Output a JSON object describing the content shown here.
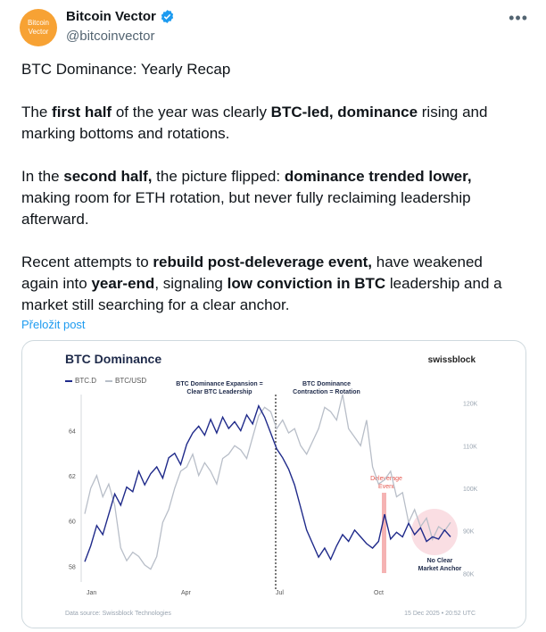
{
  "author": {
    "avatar_text_line1": "Bitcoin",
    "avatar_text_line2": "Vector",
    "display_name": "Bitcoin Vector",
    "handle": "@bitcoinvector"
  },
  "more_icon": "more-horizontal-icon",
  "post": {
    "line_title": "BTC Dominance: Yearly Recap",
    "p2": [
      "The ",
      "first half",
      " of the year was clearly ",
      "BTC-led, dominance",
      " rising and marking bottoms and rotations."
    ],
    "p3": [
      "In the ",
      "second half,",
      " the picture flipped: ",
      "dominance trended lower,",
      " making room for ETH rotation, but never fully reclaiming leadership afterward."
    ],
    "p4": [
      "Recent attempts to ",
      "rebuild post-deleverage event,",
      " have weakened again into ",
      "year-end",
      ", signaling ",
      "low conviction in BTC",
      " leadership and a market still searching for a clear anchor."
    ],
    "translate": "Přeložit post"
  },
  "colors": {
    "accent": "#1d9bf0",
    "btcd": "#1f2a8a",
    "btcusd": "#b8bec8",
    "delev": "#f2a0a0",
    "noclear": "#f6c3cc"
  },
  "chart_data": {
    "type": "line",
    "title": "BTC Dominance",
    "brand": "swissblock",
    "legend": [
      "BTC.D",
      "BTC/USD"
    ],
    "x_ticks": [
      "Jan",
      "Apr",
      "Jul",
      "Oct"
    ],
    "left_ticks": [
      "64",
      "62",
      "60",
      "58"
    ],
    "right_ticks": [
      "120K",
      "110K",
      "100K",
      "90K",
      "80K"
    ],
    "ylim_left": [
      57.3,
      65.6
    ],
    "ylim_right": [
      78000,
      122000
    ],
    "annotations": {
      "expansion_l1": "BTC Dominance Expansion =",
      "expansion_l2": "Clear BTC Leadership",
      "contraction_l1": "BTC Dominance",
      "contraction_l2": "Contraction = Rotation",
      "delev_l1": "Deleverage",
      "delev_l2": "Event",
      "noclear_l1": "No Clear",
      "noclear_l2": "Market Anchor"
    },
    "footer_source": "Data source: Swissblock Technologies",
    "footer_date": "15 Dec 2025 • 20:52 UTC",
    "series": [
      {
        "name": "BTC.D",
        "values": [
          58.2,
          58.9,
          59.8,
          59.4,
          60.3,
          61.2,
          60.7,
          61.5,
          61.3,
          62.2,
          61.6,
          62.1,
          62.4,
          61.9,
          62.8,
          63.0,
          62.5,
          63.4,
          63.9,
          64.2,
          63.8,
          64.5,
          63.9,
          64.6,
          64.1,
          64.4,
          64.0,
          64.7,
          64.3,
          65.1,
          64.6,
          63.9,
          63.2,
          62.8,
          62.3,
          61.6,
          60.6,
          59.6,
          59.0,
          58.4,
          58.8,
          58.3,
          58.9,
          59.4,
          59.1,
          59.6,
          59.3,
          59.0,
          58.8,
          59.1,
          60.3,
          59.2,
          59.5,
          59.3,
          59.9,
          59.4,
          59.7,
          59.1,
          59.3,
          59.2,
          59.6,
          59.3
        ]
      },
      {
        "name": "BTC/USD",
        "values": [
          94000,
          100000,
          103000,
          98000,
          101000,
          96000,
          86000,
          83000,
          85000,
          84000,
          82000,
          81000,
          84000,
          92000,
          95000,
          100000,
          104000,
          105000,
          108000,
          103000,
          106000,
          104000,
          101000,
          107000,
          108000,
          110000,
          109000,
          107000,
          112000,
          117000,
          119000,
          118000,
          114000,
          116000,
          113000,
          114000,
          110000,
          108000,
          111000,
          114000,
          119000,
          118000,
          116000,
          122000,
          114000,
          112000,
          110000,
          116000,
          105000,
          101000,
          102000,
          104000,
          98000,
          99000,
          92000,
          95000,
          91000,
          93000,
          88000,
          91000,
          90000,
          92000
        ]
      }
    ]
  }
}
